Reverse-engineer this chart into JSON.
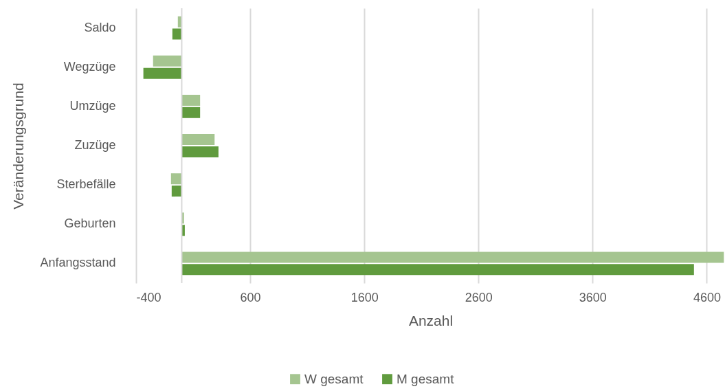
{
  "chart_data": {
    "type": "bar",
    "orientation": "horizontal",
    "xlabel": "Anzahl",
    "ylabel": "Veränderungsgrund",
    "categories": [
      "Saldo",
      "Wegzüge",
      "Umzüge",
      "Zuzüge",
      "Sterbefälle",
      "Geburten",
      "Anfangsstand"
    ],
    "series": [
      {
        "name": "W gesamt",
        "color": "#a5c590",
        "values": [
          -34,
          -251,
          161,
          288,
          -94,
          20,
          4750
        ]
      },
      {
        "name": "M gesamt",
        "color": "#609b3e",
        "values": [
          -82,
          -336,
          161,
          322,
          -88,
          27,
          4488
        ]
      }
    ],
    "xlim": [
      -400,
      4760
    ],
    "xticks": [
      -400,
      600,
      1600,
      2600,
      3600,
      4600
    ],
    "grid": "x",
    "legend": "bottom"
  }
}
